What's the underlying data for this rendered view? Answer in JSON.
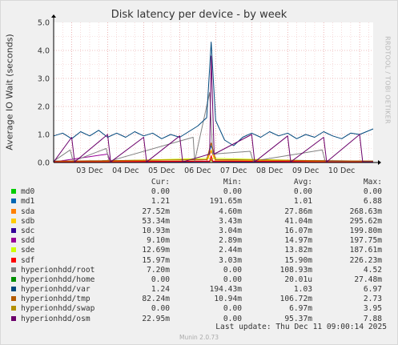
{
  "chart_data": {
    "type": "line",
    "title": "Disk latency per device - by week",
    "ylabel": "Average IO Wait (seconds)",
    "ylim": [
      0,
      5
    ],
    "yticks": [
      "0.0",
      "1.0",
      "2.0",
      "3.0",
      "4.0",
      "5.0"
    ],
    "xticks": [
      "03 Dec",
      "04 Dec",
      "05 Dec",
      "06 Dec",
      "07 Dec",
      "08 Dec",
      "09 Dec",
      "10 Dec"
    ],
    "x_start": "2025-12-02T12:00",
    "x_end": "2025-12-11T09:00",
    "grid": true,
    "series": [
      {
        "name": "md0",
        "color": "#00cc00",
        "points": [
          [
            "2025-12-02T12:00",
            0
          ],
          [
            "2025-12-11T09:00",
            0
          ]
        ]
      },
      {
        "name": "md1",
        "color": "#0066b3",
        "points": [
          [
            "2025-12-02T12:00",
            0.05
          ],
          [
            "2025-12-06T18:00",
            0.1
          ],
          [
            "2025-12-06T21:00",
            0.6
          ],
          [
            "2025-12-07T00:00",
            0.1
          ],
          [
            "2025-12-11T09:00",
            0.05
          ]
        ]
      },
      {
        "name": "sda",
        "color": "#ff8000",
        "points": [
          [
            "2025-12-02T12:00",
            0.03
          ],
          [
            "2025-12-06T18:00",
            0.05
          ],
          [
            "2025-12-06T21:00",
            0.4
          ],
          [
            "2025-12-07T00:00",
            0.05
          ],
          [
            "2025-12-11T09:00",
            0.03
          ]
        ]
      },
      {
        "name": "sdb",
        "color": "#ffcc00",
        "points": [
          [
            "2025-12-02T12:00",
            0.04
          ],
          [
            "2025-12-06T18:00",
            0.1
          ],
          [
            "2025-12-06T21:00",
            0.45
          ],
          [
            "2025-12-07T00:00",
            0.08
          ],
          [
            "2025-12-11T09:00",
            0.05
          ]
        ]
      },
      {
        "name": "sdc",
        "color": "#330099",
        "points": [
          [
            "2025-12-02T12:00",
            0.01
          ],
          [
            "2025-12-06T20:00",
            0.03
          ],
          [
            "2025-12-06T21:00",
            0.2
          ],
          [
            "2025-12-06T22:00",
            0.03
          ],
          [
            "2025-12-11T09:00",
            0.01
          ]
        ]
      },
      {
        "name": "sdd",
        "color": "#990099",
        "points": [
          [
            "2025-12-02T12:00",
            0.02
          ],
          [
            "2025-12-04T00:00",
            0.3
          ],
          [
            "2025-12-04T02:00",
            0.02
          ],
          [
            "2025-12-06T20:00",
            0.05
          ],
          [
            "2025-12-06T21:00",
            0.2
          ],
          [
            "2025-12-06T22:00",
            0.05
          ],
          [
            "2025-12-11T09:00",
            0.02
          ]
        ]
      },
      {
        "name": "sde",
        "color": "#ccff00",
        "points": [
          [
            "2025-12-02T12:00",
            0.01
          ],
          [
            "2025-12-06T21:00",
            0.15
          ],
          [
            "2025-12-11T09:00",
            0.01
          ]
        ]
      },
      {
        "name": "sdf",
        "color": "#ff0000",
        "points": [
          [
            "2025-12-02T12:00",
            0.02
          ],
          [
            "2025-12-06T20:00",
            0.05
          ],
          [
            "2025-12-06T21:00",
            0.25
          ],
          [
            "2025-12-06T22:00",
            0.05
          ],
          [
            "2025-12-11T09:00",
            0.02
          ]
        ]
      },
      {
        "name": "hyperionhdd/root",
        "color": "#808080",
        "points": [
          [
            "2025-12-02T12:00",
            0.05
          ],
          [
            "2025-12-02T23:00",
            0.45
          ],
          [
            "2025-12-03T01:00",
            0.05
          ],
          [
            "2025-12-03T23:00",
            0.5
          ],
          [
            "2025-12-04T01:00",
            0.05
          ],
          [
            "2025-12-06T09:00",
            0.9
          ],
          [
            "2025-12-06T10:00",
            0.05
          ],
          [
            "2025-12-06T20:00",
            2.5
          ],
          [
            "2025-12-06T22:00",
            0.3
          ],
          [
            "2025-12-07T23:00",
            0.4
          ],
          [
            "2025-12-08T01:00",
            0.05
          ],
          [
            "2025-12-09T23:00",
            0.45
          ],
          [
            "2025-12-10T01:00",
            0.05
          ],
          [
            "2025-12-11T09:00",
            0.05
          ]
        ]
      },
      {
        "name": "hyperionhdd/home",
        "color": "#008f00",
        "points": [
          [
            "2025-12-02T12:00",
            0
          ],
          [
            "2025-12-11T09:00",
            0
          ]
        ]
      },
      {
        "name": "hyperionhdd/var",
        "color": "#00487d",
        "points": [
          [
            "2025-12-02T12:00",
            0.95
          ],
          [
            "2025-12-02T18:00",
            1.05
          ],
          [
            "2025-12-03T00:00",
            0.85
          ],
          [
            "2025-12-03T06:00",
            1.1
          ],
          [
            "2025-12-03T12:00",
            0.95
          ],
          [
            "2025-12-03T18:00",
            1.15
          ],
          [
            "2025-12-04T00:00",
            0.9
          ],
          [
            "2025-12-04T06:00",
            1.05
          ],
          [
            "2025-12-04T12:00",
            0.9
          ],
          [
            "2025-12-04T18:00",
            1.1
          ],
          [
            "2025-12-05T00:00",
            0.95
          ],
          [
            "2025-12-05T06:00",
            1.05
          ],
          [
            "2025-12-05T12:00",
            0.85
          ],
          [
            "2025-12-05T18:00",
            1.0
          ],
          [
            "2025-12-06T00:00",
            0.9
          ],
          [
            "2025-12-06T06:00",
            1.1
          ],
          [
            "2025-12-06T12:00",
            1.3
          ],
          [
            "2025-12-06T18:00",
            1.6
          ],
          [
            "2025-12-06T21:00",
            4.3
          ],
          [
            "2025-12-07T00:00",
            1.5
          ],
          [
            "2025-12-07T06:00",
            0.8
          ],
          [
            "2025-12-07T12:00",
            0.6
          ],
          [
            "2025-12-07T18:00",
            0.9
          ],
          [
            "2025-12-08T00:00",
            1.05
          ],
          [
            "2025-12-08T06:00",
            0.9
          ],
          [
            "2025-12-08T12:00",
            1.1
          ],
          [
            "2025-12-08T18:00",
            0.95
          ],
          [
            "2025-12-09T00:00",
            1.05
          ],
          [
            "2025-12-09T06:00",
            0.85
          ],
          [
            "2025-12-09T12:00",
            1.0
          ],
          [
            "2025-12-09T18:00",
            0.9
          ],
          [
            "2025-12-10T00:00",
            1.1
          ],
          [
            "2025-12-10T06:00",
            0.95
          ],
          [
            "2025-12-10T12:00",
            0.85
          ],
          [
            "2025-12-10T18:00",
            1.05
          ],
          [
            "2025-12-11T00:00",
            1.0
          ],
          [
            "2025-12-11T09:00",
            1.2
          ]
        ]
      },
      {
        "name": "hyperionhdd/tmp",
        "color": "#b35a00",
        "points": [
          [
            "2025-12-02T12:00",
            0.05
          ],
          [
            "2025-12-06T18:00",
            0.1
          ],
          [
            "2025-12-06T21:00",
            0.7
          ],
          [
            "2025-12-07T00:00",
            0.1
          ],
          [
            "2025-12-11T09:00",
            0.05
          ]
        ]
      },
      {
        "name": "hyperionhdd/swap",
        "color": "#b38f00",
        "points": [
          [
            "2025-12-02T12:00",
            0
          ],
          [
            "2025-12-06T20:00",
            0
          ],
          [
            "2025-12-06T21:00",
            0.1
          ],
          [
            "2025-12-06T22:00",
            0
          ],
          [
            "2025-12-11T09:00",
            0
          ]
        ]
      },
      {
        "name": "hyperionhdd/osm",
        "color": "#6b006b",
        "points": [
          [
            "2025-12-02T12:00",
            0.02
          ],
          [
            "2025-12-03T00:00",
            0.9
          ],
          [
            "2025-12-03T02:00",
            0.02
          ],
          [
            "2025-12-04T00:00",
            1.0
          ],
          [
            "2025-12-04T02:00",
            0.02
          ],
          [
            "2025-12-05T00:00",
            0.9
          ],
          [
            "2025-12-05T02:00",
            0.02
          ],
          [
            "2025-12-06T00:00",
            0.95
          ],
          [
            "2025-12-06T02:00",
            0.02
          ],
          [
            "2025-12-06T20:00",
            0.3
          ],
          [
            "2025-12-06T21:00",
            3.8
          ],
          [
            "2025-12-06T23:00",
            0.3
          ],
          [
            "2025-12-08T00:00",
            1.0
          ],
          [
            "2025-12-08T02:00",
            0.02
          ],
          [
            "2025-12-09T00:00",
            0.95
          ],
          [
            "2025-12-09T02:00",
            0.02
          ],
          [
            "2025-12-10T00:00",
            0.9
          ],
          [
            "2025-12-10T02:00",
            0.02
          ],
          [
            "2025-12-11T00:00",
            1.0
          ],
          [
            "2025-12-11T02:00",
            0.02
          ],
          [
            "2025-12-11T09:00",
            0.02
          ]
        ]
      }
    ]
  },
  "legend": {
    "headers": [
      "Cur:",
      "Min:",
      "Avg:",
      "Max:"
    ],
    "rows": [
      {
        "name": "md0",
        "color": "#00cc00",
        "cur": "0.00",
        "min": "0.00",
        "avg": "0.00",
        "max": "0.00"
      },
      {
        "name": "md1",
        "color": "#0066b3",
        "cur": "1.21",
        "min": "191.65m",
        "avg": "1.01",
        "max": "6.88"
      },
      {
        "name": "sda",
        "color": "#ff8000",
        "cur": "27.52m",
        "min": "4.60m",
        "avg": "27.86m",
        "max": "268.63m"
      },
      {
        "name": "sdb",
        "color": "#ffcc00",
        "cur": "53.34m",
        "min": "3.43m",
        "avg": "41.04m",
        "max": "295.62m"
      },
      {
        "name": "sdc",
        "color": "#330099",
        "cur": "10.93m",
        "min": "3.04m",
        "avg": "16.07m",
        "max": "199.80m"
      },
      {
        "name": "sdd",
        "color": "#990099",
        "cur": "9.10m",
        "min": "2.89m",
        "avg": "14.97m",
        "max": "197.75m"
      },
      {
        "name": "sde",
        "color": "#ccff00",
        "cur": "12.69m",
        "min": "2.44m",
        "avg": "13.82m",
        "max": "187.61m"
      },
      {
        "name": "sdf",
        "color": "#ff0000",
        "cur": "15.97m",
        "min": "3.03m",
        "avg": "15.90m",
        "max": "226.23m"
      },
      {
        "name": "hyperionhdd/root",
        "color": "#808080",
        "cur": "7.20m",
        "min": "0.00",
        "avg": "108.93m",
        "max": "4.52"
      },
      {
        "name": "hyperionhdd/home",
        "color": "#008f00",
        "cur": "0.00",
        "min": "0.00",
        "avg": "20.01u",
        "max": "27.48m"
      },
      {
        "name": "hyperionhdd/var",
        "color": "#00487d",
        "cur": "1.24",
        "min": "194.43m",
        "avg": "1.03",
        "max": "6.97"
      },
      {
        "name": "hyperionhdd/tmp",
        "color": "#b35a00",
        "cur": "82.24m",
        "min": "10.94m",
        "avg": "106.72m",
        "max": "2.73"
      },
      {
        "name": "hyperionhdd/swap",
        "color": "#b38f00",
        "cur": "0.00",
        "min": "0.00",
        "avg": "6.97m",
        "max": "3.95"
      },
      {
        "name": "hyperionhdd/osm",
        "color": "#6b006b",
        "cur": "22.95m",
        "min": "0.00",
        "avg": "95.37m",
        "max": "7.88"
      }
    ]
  },
  "last_update": "Last update: Thu Dec 11 09:00:14 2025",
  "watermark": "RRDTOOL / TOBI OETIKER",
  "footer": "Munin 2.0.73"
}
